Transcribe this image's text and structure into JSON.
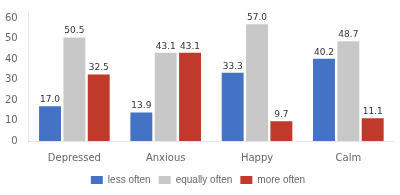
{
  "chart_data": {
    "type": "bar",
    "categories": [
      "Depressed",
      "Anxious",
      "Happy",
      "Calm"
    ],
    "series": [
      {
        "name": "less often",
        "color": "#4472C4",
        "values": [
          17.0,
          13.9,
          33.3,
          40.2
        ],
        "value_labels": [
          "17.0",
          "13.9",
          "33.3",
          "40.2"
        ]
      },
      {
        "name": "equally often",
        "color": "#C8C8C8",
        "values": [
          50.5,
          43.1,
          57.0,
          48.7
        ],
        "value_labels": [
          "50.5",
          "43.1",
          "57.0",
          "48.7"
        ]
      },
      {
        "name": "more often",
        "color": "#C0392B",
        "values": [
          32.5,
          43.1,
          9.7,
          11.1
        ],
        "value_labels": [
          "32.5",
          "43.1",
          "9.7",
          "11.1"
        ]
      }
    ],
    "ylim": [
      0,
      63
    ],
    "yticks": [
      0,
      10,
      20,
      30,
      40,
      50,
      60
    ],
    "grid": false,
    "legend": "bottom",
    "data_labels": true
  }
}
